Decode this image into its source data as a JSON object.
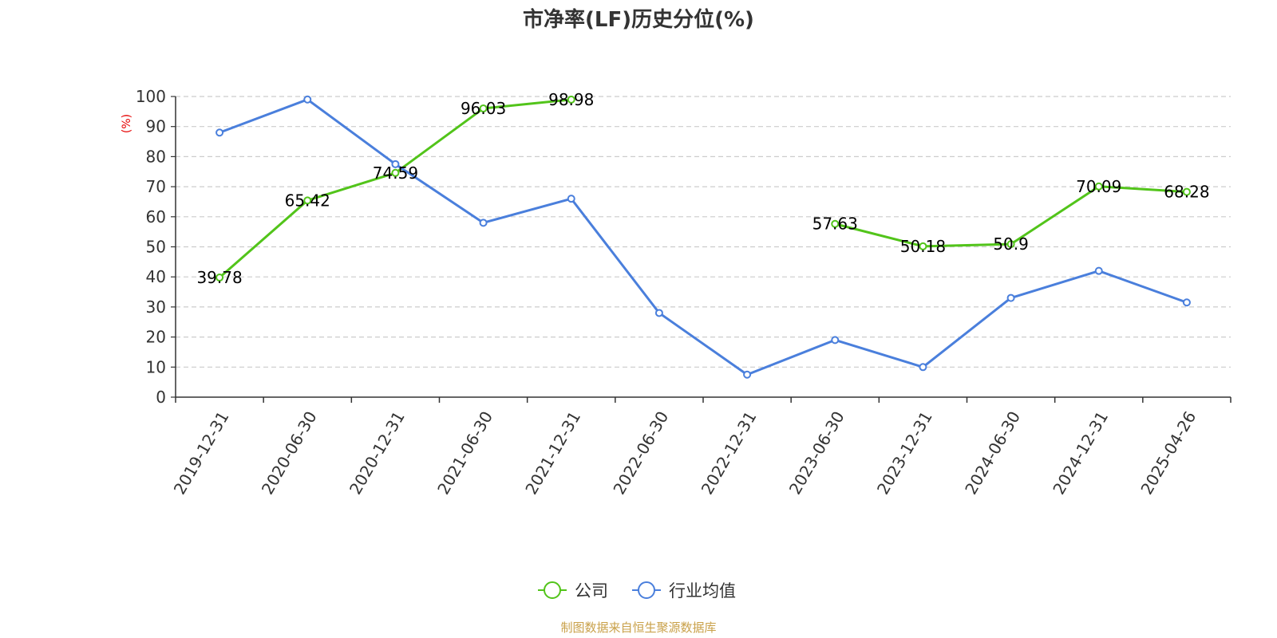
{
  "chart_data": {
    "type": "line",
    "title": "市净率(LF)历史分位(%)",
    "ylabel": "(%)",
    "xlabel": "",
    "ylim": [
      0,
      100
    ],
    "yticks": [
      0,
      10,
      20,
      30,
      40,
      50,
      60,
      70,
      80,
      90,
      100
    ],
    "grid": true,
    "legend_position": "bottom-center",
    "categories": [
      "2019-12-31",
      "2020-06-30",
      "2020-12-31",
      "2021-06-30",
      "2021-12-31",
      "2022-06-30",
      "2022-12-31",
      "2023-06-30",
      "2023-12-31",
      "2024-06-30",
      "2024-12-31",
      "2025-04-26"
    ],
    "series": [
      {
        "name": "公司",
        "color": "#52c41a",
        "values": [
          39.78,
          65.42,
          74.59,
          96.03,
          98.98,
          null,
          null,
          57.63,
          50.18,
          50.9,
          70.09,
          68.28
        ],
        "labels": [
          "39.78",
          "65.42",
          "74.59",
          "96.03",
          "98.98",
          "",
          "",
          "57.63",
          "50.18",
          "50.9",
          "70.09",
          "68.28"
        ]
      },
      {
        "name": "行业均值",
        "color": "#4a7fdc",
        "values": [
          88,
          99,
          77.5,
          58,
          66,
          28,
          7.5,
          19,
          10,
          33,
          42,
          31.5
        ]
      }
    ]
  },
  "footer": {
    "source": "制图数据来自恒生聚源数据库",
    "source_color": "#c9a14a"
  },
  "colors": {
    "ylabel": "#e60000",
    "axis": "#333333",
    "grid": "#cccccc"
  }
}
